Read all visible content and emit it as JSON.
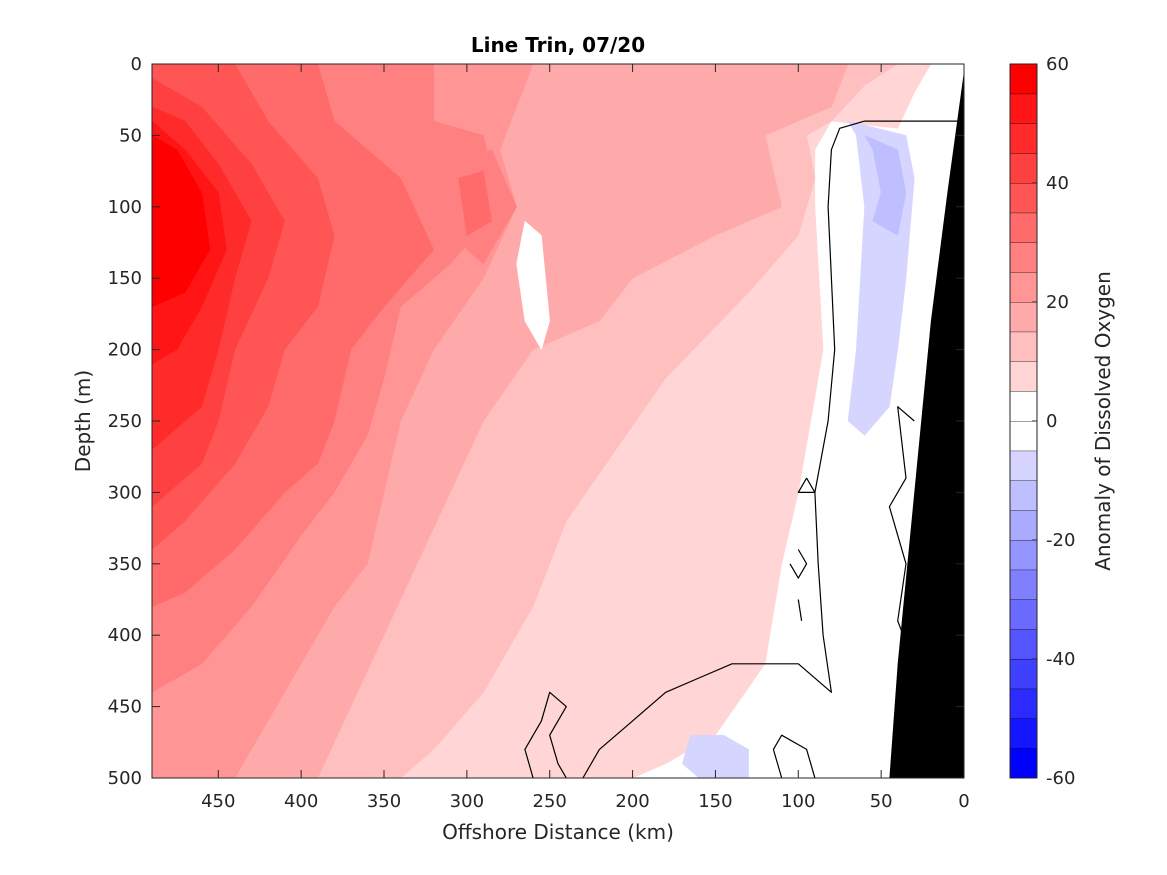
{
  "chart_data": {
    "type": "heatmap",
    "subtype": "filled contour section",
    "title": "Line Trin, 07/20",
    "xlabel": "Offshore Distance (km)",
    "ylabel": "Depth (m)",
    "colorbar_label": "Anomaly of Dissolved Oxygen",
    "xlim": [
      490,
      0
    ],
    "ylim": [
      0,
      500
    ],
    "x_reversed": true,
    "y_reversed": true,
    "x_ticks": [
      450,
      400,
      350,
      300,
      250,
      200,
      150,
      100,
      50,
      0
    ],
    "y_ticks": [
      0,
      50,
      100,
      150,
      200,
      250,
      300,
      350,
      400,
      450,
      500
    ],
    "colorbar": {
      "range": [
        -60,
        60
      ],
      "ticks": [
        60,
        40,
        20,
        0,
        -20,
        -40,
        -60
      ],
      "levels": [
        -60,
        -55,
        -50,
        -45,
        -40,
        -35,
        -30,
        -25,
        -20,
        -15,
        -10,
        -5,
        0,
        5,
        10,
        15,
        20,
        25,
        30,
        35,
        40,
        45,
        50,
        55,
        60
      ],
      "colors": {
        "-57.5": "#0000ff",
        "-52.5": "#1515ff",
        "-47.5": "#2b2bff",
        "-42.5": "#4040ff",
        "-37.5": "#5555ff",
        "-32.5": "#6a6aff",
        "-27.5": "#8080ff",
        "-22.5": "#9595ff",
        "-17.5": "#aaaaff",
        "-12.5": "#bfbfff",
        "-7.5": "#d5d5ff",
        "-2.5": "#ffffff",
        "2.5": "#ffffff",
        "7.5": "#ffd5d5",
        "12.5": "#ffbfbf",
        "17.5": "#ffaaaa",
        "22.5": "#ff9595",
        "27.5": "#ff8080",
        "32.5": "#ff6a6a",
        "37.5": "#ff5555",
        "42.5": "#ff4040",
        "47.5": "#ff2b2b",
        "52.5": "#ff1515",
        "57.5": "#ff0000"
      }
    },
    "contour_line_level": 0,
    "bathymetry_color": "#000000",
    "grid": false,
    "field_regions": [
      {
        "value": 2.5,
        "polygon": [
          [
            490,
            0
          ],
          [
            0,
            0
          ],
          [
            0,
            500
          ],
          [
            490,
            500
          ]
        ]
      },
      {
        "value": 7.5,
        "polygon": [
          [
            490,
            0
          ],
          [
            20,
            0
          ],
          [
            30,
            20
          ],
          [
            40,
            45
          ],
          [
            80,
            40
          ],
          [
            90,
            60
          ],
          [
            90,
            100
          ],
          [
            85,
            200
          ],
          [
            100,
            300
          ],
          [
            110,
            350
          ],
          [
            120,
            420
          ],
          [
            150,
            470
          ],
          [
            180,
            490
          ],
          [
            200,
            500
          ],
          [
            490,
            500
          ]
        ]
      },
      {
        "value": 12.5,
        "polygon": [
          [
            490,
            0
          ],
          [
            40,
            0
          ],
          [
            60,
            15
          ],
          [
            80,
            40
          ],
          [
            95,
            50
          ],
          [
            90,
            80
          ],
          [
            100,
            120
          ],
          [
            130,
            160
          ],
          [
            180,
            220
          ],
          [
            210,
            270
          ],
          [
            240,
            320
          ],
          [
            260,
            380
          ],
          [
            290,
            440
          ],
          [
            320,
            480
          ],
          [
            340,
            500
          ],
          [
            490,
            500
          ]
        ]
      },
      {
        "value": 17.5,
        "polygon": [
          [
            490,
            0
          ],
          [
            70,
            0
          ],
          [
            80,
            30
          ],
          [
            120,
            50
          ],
          [
            110,
            100
          ],
          [
            150,
            120
          ],
          [
            200,
            150
          ],
          [
            220,
            180
          ],
          [
            260,
            200
          ],
          [
            290,
            250
          ],
          [
            310,
            300
          ],
          [
            330,
            350
          ],
          [
            350,
            400
          ],
          [
            370,
            450
          ],
          [
            390,
            500
          ],
          [
            490,
            500
          ]
        ]
      },
      {
        "value": 22.5,
        "polygon": [
          [
            490,
            0
          ],
          [
            260,
            0
          ],
          [
            270,
            30
          ],
          [
            280,
            60
          ],
          [
            270,
            100
          ],
          [
            290,
            150
          ],
          [
            320,
            200
          ],
          [
            340,
            250
          ],
          [
            350,
            300
          ],
          [
            360,
            350
          ],
          [
            380,
            380
          ],
          [
            400,
            420
          ],
          [
            420,
            460
          ],
          [
            440,
            500
          ],
          [
            490,
            500
          ]
        ]
      },
      {
        "value": 27.5,
        "polygon": [
          [
            490,
            0
          ],
          [
            320,
            0
          ],
          [
            320,
            40
          ],
          [
            290,
            50
          ],
          [
            280,
            100
          ],
          [
            310,
            140
          ],
          [
            340,
            170
          ],
          [
            350,
            220
          ],
          [
            360,
            260
          ],
          [
            380,
            300
          ],
          [
            400,
            330
          ],
          [
            430,
            380
          ],
          [
            460,
            420
          ],
          [
            490,
            440
          ]
        ]
      },
      {
        "value": 32.5,
        "polygon": [
          [
            490,
            0
          ],
          [
            390,
            0
          ],
          [
            380,
            40
          ],
          [
            340,
            80
          ],
          [
            320,
            130
          ],
          [
            350,
            170
          ],
          [
            370,
            200
          ],
          [
            380,
            250
          ],
          [
            390,
            280
          ],
          [
            410,
            300
          ],
          [
            440,
            340
          ],
          [
            470,
            370
          ],
          [
            490,
            380
          ]
        ]
      },
      {
        "value": 37.5,
        "polygon": [
          [
            490,
            0
          ],
          [
            440,
            0
          ],
          [
            420,
            40
          ],
          [
            390,
            80
          ],
          [
            380,
            120
          ],
          [
            390,
            170
          ],
          [
            410,
            200
          ],
          [
            420,
            240
          ],
          [
            440,
            280
          ],
          [
            470,
            320
          ],
          [
            490,
            340
          ]
        ]
      },
      {
        "value": 42.5,
        "polygon": [
          [
            490,
            10
          ],
          [
            460,
            30
          ],
          [
            430,
            70
          ],
          [
            410,
            110
          ],
          [
            420,
            150
          ],
          [
            440,
            200
          ],
          [
            450,
            250
          ],
          [
            460,
            280
          ],
          [
            480,
            300
          ],
          [
            490,
            310
          ]
        ]
      },
      {
        "value": 47.5,
        "polygon": [
          [
            490,
            30
          ],
          [
            470,
            40
          ],
          [
            450,
            70
          ],
          [
            430,
            110
          ],
          [
            440,
            150
          ],
          [
            450,
            200
          ],
          [
            460,
            240
          ],
          [
            480,
            260
          ],
          [
            490,
            270
          ]
        ]
      },
      {
        "value": 52.5,
        "polygon": [
          [
            490,
            40
          ],
          [
            470,
            60
          ],
          [
            450,
            90
          ],
          [
            445,
            130
          ],
          [
            460,
            170
          ],
          [
            475,
            200
          ],
          [
            490,
            210
          ]
        ]
      },
      {
        "value": 57.5,
        "polygon": [
          [
            490,
            50
          ],
          [
            475,
            60
          ],
          [
            460,
            90
          ],
          [
            455,
            130
          ],
          [
            470,
            160
          ],
          [
            490,
            170
          ]
        ]
      },
      {
        "value": 27.5,
        "polygon": [
          [
            310,
            70
          ],
          [
            285,
            60
          ],
          [
            270,
            100
          ],
          [
            290,
            140
          ],
          [
            310,
            120
          ]
        ]
      },
      {
        "value": 32.5,
        "polygon": [
          [
            305,
            80
          ],
          [
            290,
            75
          ],
          [
            285,
            110
          ],
          [
            300,
            120
          ]
        ]
      },
      {
        "value": 2.5,
        "polygon": [
          [
            265,
            110
          ],
          [
            255,
            120
          ],
          [
            250,
            180
          ],
          [
            255,
            200
          ],
          [
            265,
            180
          ],
          [
            270,
            140
          ]
        ]
      },
      {
        "value": -7.5,
        "polygon": [
          [
            70,
            40
          ],
          [
            65,
            50
          ],
          [
            60,
            100
          ],
          [
            65,
            200
          ],
          [
            70,
            250
          ],
          [
            60,
            260
          ],
          [
            45,
            240
          ],
          [
            40,
            200
          ],
          [
            35,
            150
          ],
          [
            30,
            80
          ],
          [
            35,
            50
          ]
        ]
      },
      {
        "value": -12.5,
        "polygon": [
          [
            60,
            50
          ],
          [
            55,
            60
          ],
          [
            50,
            90
          ],
          [
            55,
            110
          ],
          [
            40,
            120
          ],
          [
            35,
            90
          ],
          [
            40,
            60
          ]
        ]
      },
      {
        "value": -7.5,
        "polygon": [
          [
            165,
            470
          ],
          [
            170,
            490
          ],
          [
            160,
            500
          ],
          [
            130,
            500
          ],
          [
            130,
            480
          ],
          [
            145,
            470
          ]
        ]
      }
    ],
    "bathymetry_polygon": [
      [
        0,
        5
      ],
      [
        10,
        90
      ],
      [
        20,
        180
      ],
      [
        30,
        300
      ],
      [
        40,
        420
      ],
      [
        45,
        500
      ],
      [
        0,
        500
      ]
    ],
    "zero_contours": [
      [
        [
          0,
          40
        ],
        [
          60,
          40
        ],
        [
          75,
          45
        ],
        [
          80,
          60
        ],
        [
          82,
          100
        ],
        [
          80,
          150
        ],
        [
          78,
          200
        ],
        [
          82,
          250
        ],
        [
          90,
          300
        ],
        [
          88,
          350
        ],
        [
          85,
          400
        ],
        [
          80,
          440
        ],
        [
          100,
          420
        ],
        [
          120,
          420
        ],
        [
          140,
          420
        ],
        [
          160,
          430
        ],
        [
          180,
          440
        ],
        [
          200,
          460
        ],
        [
          220,
          480
        ],
        [
          230,
          500
        ]
      ],
      [
        [
          30,
          250
        ],
        [
          40,
          240
        ],
        [
          35,
          290
        ],
        [
          45,
          310
        ],
        [
          35,
          350
        ],
        [
          40,
          390
        ],
        [
          30,
          420
        ],
        [
          25,
          450
        ],
        [
          20,
          480
        ],
        [
          15,
          500
        ]
      ],
      [
        [
          260,
          500
        ],
        [
          265,
          480
        ],
        [
          255,
          460
        ],
        [
          250,
          440
        ],
        [
          240,
          450
        ],
        [
          250,
          470
        ],
        [
          245,
          490
        ],
        [
          240,
          500
        ]
      ],
      [
        [
          90,
          500
        ],
        [
          95,
          480
        ],
        [
          110,
          470
        ],
        [
          115,
          480
        ],
        [
          110,
          500
        ]
      ],
      [
        [
          95,
          290
        ],
        [
          100,
          300
        ],
        [
          90,
          300
        ],
        [
          95,
          290
        ]
      ],
      [
        [
          100,
          340
        ],
        [
          95,
          350
        ],
        [
          100,
          360
        ],
        [
          105,
          350
        ]
      ],
      [
        [
          100,
          375
        ],
        [
          98,
          390
        ]
      ]
    ]
  }
}
